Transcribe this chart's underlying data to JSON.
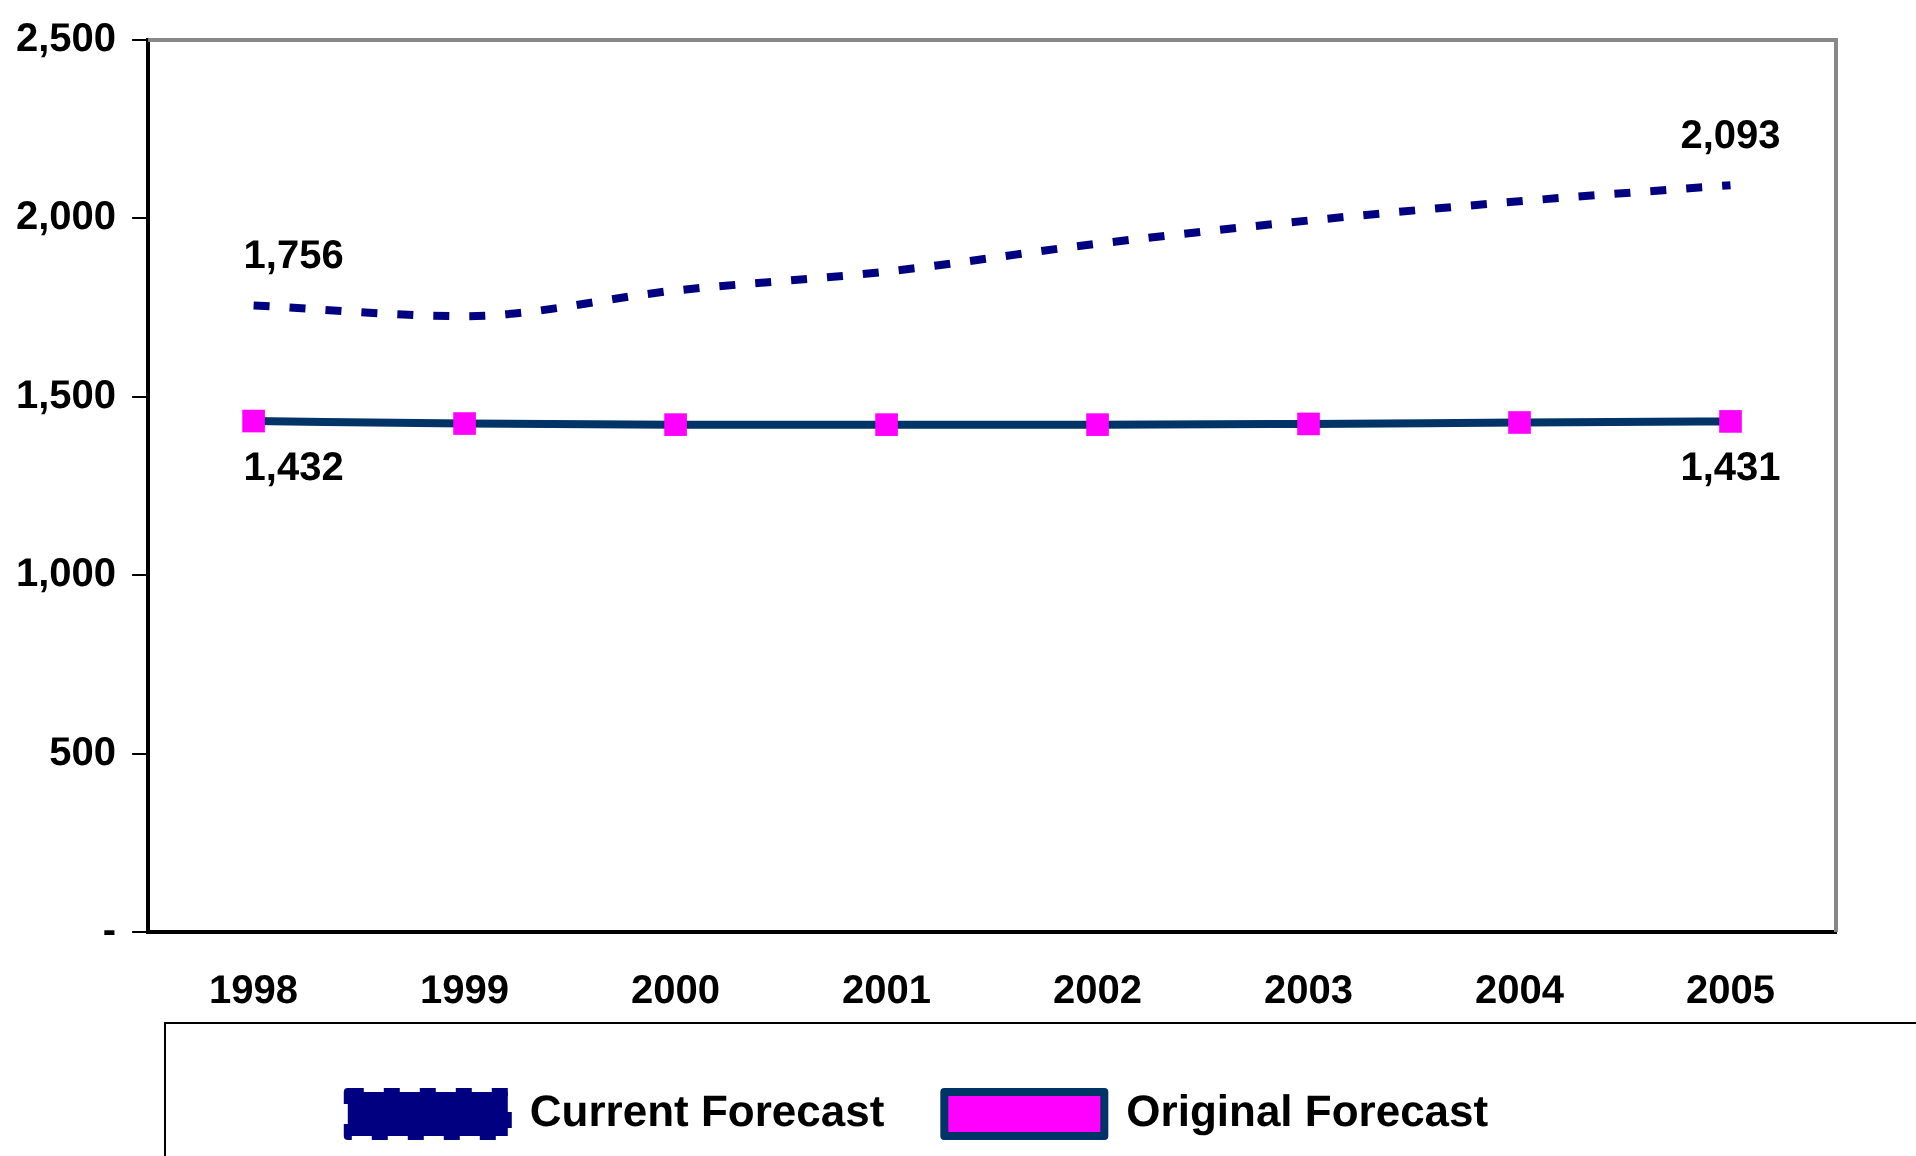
{
  "chart_data": {
    "type": "line",
    "categories": [
      "1998",
      "1999",
      "2000",
      "2001",
      "2002",
      "2003",
      "2004",
      "2005"
    ],
    "series": [
      {
        "name": "Current Forecast",
        "color": "#000080",
        "values": [
          1756,
          1726,
          1798,
          1851,
          1929,
          1994,
          2048,
          2093
        ],
        "marker": "none",
        "line_style": "dashed",
        "value_labels": [
          "1,756",
          null,
          null,
          null,
          null,
          null,
          null,
          "2,093"
        ]
      },
      {
        "name": "Original Forecast",
        "color": "#003366",
        "values": [
          1432,
          1425,
          1422,
          1422,
          1422,
          1424,
          1428,
          1431
        ],
        "marker": "square",
        "line_style": "solid",
        "value_labels": [
          "1,432",
          null,
          null,
          null,
          null,
          null,
          null,
          "1,431"
        ]
      }
    ],
    "ylim": [
      0,
      2500
    ],
    "yticks": [
      {
        "value": 0,
        "label": "-"
      },
      500,
      {
        "value": 1000,
        "label": "1,000"
      },
      {
        "value": 1500,
        "label": "1,500"
      },
      {
        "value": 2000,
        "label": "2,000"
      },
      {
        "value": 2500,
        "label": "2,500"
      }
    ],
    "grid": false,
    "legend": "bottom"
  }
}
